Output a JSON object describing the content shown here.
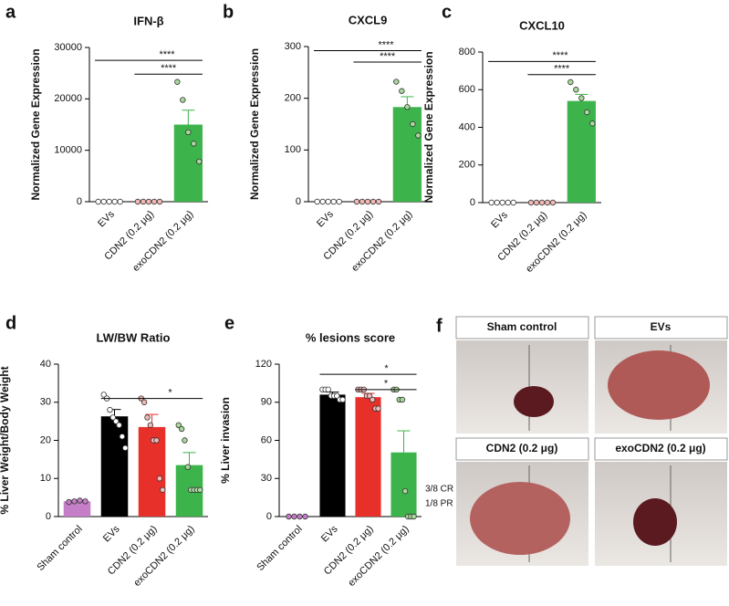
{
  "chart_data": [
    {
      "type": "bar",
      "panel_label": "a",
      "title": "IFN-β",
      "y_label": "Normalized Gene Expression",
      "categories": [
        "EVs",
        "CDN2 (0.2 μg)",
        "exoCDN2 (0.2 μg)"
      ],
      "values": [
        0,
        0,
        15000
      ],
      "errors": [
        0,
        0,
        2800
      ],
      "colors": [
        "#000000",
        "#e8302a",
        "#3cb44b"
      ],
      "point_colors": [
        "#ffffff",
        "#f2b8b5",
        "#a9d89c"
      ],
      "points": [
        [
          0,
          0,
          0,
          0,
          0
        ],
        [
          0,
          0,
          0,
          0,
          0
        ],
        [
          23300,
          19800,
          13500,
          11300,
          7800
        ]
      ],
      "ylim": [
        0,
        30000
      ],
      "yticks": [
        0,
        10000,
        20000,
        30000
      ],
      "brackets": [
        {
          "text": "****",
          "span": [
            "EVs",
            "exoCDN2 (0.2 μg)"
          ],
          "y": 27500
        },
        {
          "text": "****",
          "span": [
            "CDN2 (0.2 μg)",
            "exoCDN2 (0.2 μg)"
          ],
          "y": 24800
        }
      ]
    },
    {
      "type": "bar",
      "panel_label": "b",
      "title": "CXCL9",
      "y_label": "Normalized Gene Expression",
      "categories": [
        "EVs",
        "CDN2 (0.2 μg)",
        "exoCDN2 (0.2 μg)"
      ],
      "values": [
        0,
        0,
        183
      ],
      "errors": [
        0,
        0,
        20
      ],
      "colors": [
        "#000000",
        "#e8302a",
        "#3cb44b"
      ],
      "point_colors": [
        "#ffffff",
        "#f2b8b5",
        "#a9d89c"
      ],
      "points": [
        [
          0,
          0,
          0,
          0,
          0
        ],
        [
          0,
          0,
          0,
          0,
          0
        ],
        [
          232,
          214,
          183,
          150,
          128
        ]
      ],
      "ylim": [
        0,
        300
      ],
      "yticks": [
        0,
        100,
        200,
        300
      ],
      "brackets": [
        {
          "text": "****",
          "span": [
            "EVs",
            "exoCDN2 (0.2 μg)"
          ],
          "y": 292
        },
        {
          "text": "****",
          "span": [
            "CDN2 (0.2 μg)",
            "exoCDN2 (0.2 μg)"
          ],
          "y": 270
        }
      ]
    },
    {
      "type": "bar",
      "panel_label": "c",
      "title": "CXCL10",
      "y_label": "Normalized Gene Expression",
      "categories": [
        "EVs",
        "CDN2 (0.2 μg)",
        "exoCDN2 (0.2 μg)"
      ],
      "values": [
        0,
        0,
        540
      ],
      "errors": [
        0,
        0,
        35
      ],
      "colors": [
        "#000000",
        "#e8302a",
        "#3cb44b"
      ],
      "point_colors": [
        "#ffffff",
        "#f2b8b5",
        "#a9d89c"
      ],
      "points": [
        [
          0,
          0,
          0,
          0,
          0
        ],
        [
          0,
          0,
          0,
          0,
          0
        ],
        [
          640,
          600,
          555,
          480,
          420
        ]
      ],
      "ylim": [
        0,
        800
      ],
      "yticks": [
        0,
        200,
        400,
        600,
        800
      ],
      "brackets": [
        {
          "text": "****",
          "span": [
            "EVs",
            "exoCDN2 (0.2 μg)"
          ],
          "y": 750
        },
        {
          "text": "****",
          "span": [
            "CDN2 (0.2 μg)",
            "exoCDN2 (0.2 μg)"
          ],
          "y": 680
        }
      ]
    },
    {
      "type": "bar",
      "panel_label": "d",
      "title": "LW/BW Ratio",
      "y_label": "% Liver Weight/Body Weight",
      "categories": [
        "Sham control",
        "EVs",
        "CDN2 (0.2 μg)",
        "exoCDN2 (0.2 μg)"
      ],
      "values": [
        4,
        26.3,
        23.5,
        13.5
      ],
      "errors": [
        0.3,
        1.8,
        3.3,
        3.3
      ],
      "colors": [
        "#c57fc8",
        "#000000",
        "#e8302a",
        "#3cb44b"
      ],
      "point_colors": [
        "#c57fc8",
        "#ffffff",
        "#f2b8b5",
        "#a9d89c"
      ],
      "points": [
        [
          3.8,
          4,
          4.2,
          4
        ],
        [
          32,
          31,
          28,
          26,
          25,
          24,
          21,
          18
        ],
        [
          31,
          30,
          26,
          24,
          20,
          20,
          10,
          7
        ],
        [
          24,
          23,
          20,
          13,
          7,
          7,
          7,
          7
        ]
      ],
      "ylim": [
        0,
        40
      ],
      "yticks": [
        0,
        10,
        20,
        30,
        40
      ],
      "brackets": [
        {
          "text": "*",
          "span": [
            "EVs",
            "exoCDN2 (0.2 μg)"
          ],
          "y": 31
        }
      ]
    },
    {
      "type": "bar",
      "panel_label": "e",
      "title": "% lesions score",
      "y_label": "% Liver invasion",
      "categories": [
        "Sham control",
        "EVs",
        "CDN2 (0.2 μg)",
        "exoCDN2 (0.2 μg)"
      ],
      "values": [
        0,
        96,
        94,
        50.5
      ],
      "errors": [
        0,
        2,
        3,
        17
      ],
      "colors": [
        "#c57fc8",
        "#000000",
        "#e8302a",
        "#3cb44b"
      ],
      "point_colors": [
        "#c57fc8",
        "#ffffff",
        "#f2b8b5",
        "#a9d89c"
      ],
      "points": [
        [
          0,
          0,
          0,
          0
        ],
        [
          100,
          100,
          100,
          95,
          95,
          95,
          92,
          92
        ],
        [
          100,
          100,
          100,
          95,
          95,
          92,
          85,
          85
        ],
        [
          100,
          100,
          92,
          92,
          20,
          0,
          0,
          0
        ]
      ],
      "ylim": [
        0,
        120
      ],
      "yticks": [
        0,
        30,
        60,
        90,
        120
      ],
      "brackets": [
        {
          "text": "*",
          "span": [
            "EVs",
            "exoCDN2 (0.2 μg)"
          ],
          "y": 112
        },
        {
          "text": "*",
          "span": [
            "CDN2 (0.2 μg)",
            "exoCDN2 (0.2 μg)"
          ],
          "y": 100
        }
      ],
      "notes": [
        "3/8 CR",
        "1/8 PR"
      ]
    }
  ],
  "photo_panel": {
    "label": "f",
    "captions": [
      "Sham control",
      "EVs",
      "CDN2 (0.2 μg)",
      "exoCDN2 (0.2 μg)"
    ]
  }
}
